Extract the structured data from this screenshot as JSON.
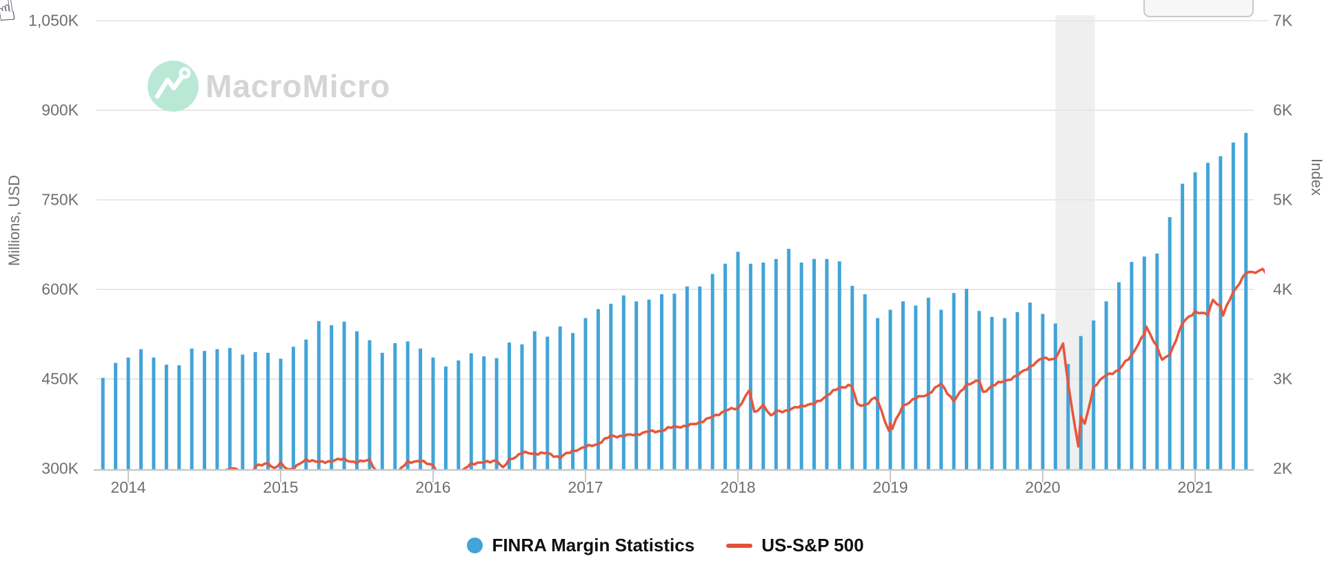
{
  "header": {
    "cursor_glyph": "☝",
    "toolbar_button_label": ""
  },
  "watermark": {
    "brand": "MacroMicro"
  },
  "left_axis": {
    "title": "Millions, USD",
    "labels": [
      "1,050K",
      "900K",
      "750K",
      "600K",
      "450K",
      "300K"
    ]
  },
  "right_axis": {
    "title": "Index",
    "labels": [
      "7K",
      "6K",
      "5K",
      "4K",
      "3K",
      "2K"
    ]
  },
  "x_axis": {
    "years": [
      "2014",
      "2015",
      "2016",
      "2017",
      "2018",
      "2019",
      "2020",
      "2021"
    ]
  },
  "legend": [
    {
      "label": "FINRA Margin Statistics",
      "marker": "circle",
      "color": "#42a4d7"
    },
    {
      "label": "US-S&P 500",
      "marker": "line",
      "color": "#e0523c"
    }
  ],
  "colors": {
    "bar": "#42a4d7",
    "line": "#e4573e",
    "grid": "#e7e7e7",
    "axis": "#c8c8c8",
    "band": "#efefef",
    "label": "#6b6f73",
    "logo_mint": "#b9e9d6"
  },
  "chart_data": {
    "type": "combo",
    "title": "",
    "left_ylim": [
      300000,
      1050000
    ],
    "right_ylim": [
      2000,
      7000
    ],
    "x_range": [
      "2013-11",
      "2021-06"
    ],
    "grid": true,
    "legend_position": "bottom",
    "recession_band": {
      "from": "2020-02",
      "to": "2020-04"
    },
    "series": [
      {
        "name": "FINRA Margin Statistics",
        "type": "bar",
        "axis": "left",
        "unit": "Millions, USD",
        "frequency": "monthly",
        "start": "2013-11",
        "values": [
          452,
          477,
          486,
          500,
          486,
          474,
          473,
          501,
          497,
          500,
          502,
          491,
          495,
          494,
          484,
          504,
          516,
          547,
          540,
          546,
          530,
          515,
          494,
          510,
          513,
          501,
          486,
          471,
          481,
          493,
          488,
          485,
          511,
          508,
          530,
          521,
          538,
          527,
          552,
          567,
          576,
          590,
          580,
          583,
          592,
          593,
          605,
          605,
          626,
          643,
          663,
          643,
          645,
          651,
          668,
          645,
          651,
          651,
          647,
          606,
          592,
          552,
          566,
          580,
          573,
          586,
          566,
          594,
          601,
          564,
          554,
          552,
          562,
          578,
          559,
          543,
          475,
          522,
          548,
          580,
          612,
          646,
          655,
          660,
          721,
          777,
          796,
          812,
          823,
          846,
          862
        ],
        "values_unit_note": "thousands of millions USD (K)"
      },
      {
        "name": "US-S&P 500",
        "type": "line",
        "axis": "right",
        "x_unit": "months_after_2014_01",
        "points": [
          [
            6,
            1960
          ],
          [
            7,
            1931
          ],
          [
            8,
            2003
          ],
          [
            9,
            1972
          ],
          [
            9.5,
            1862
          ],
          [
            10,
            2018
          ],
          [
            11,
            2068
          ],
          [
            11.5,
            1993
          ],
          [
            12,
            2059
          ],
          [
            12.6,
            1992
          ],
          [
            13,
            1995
          ],
          [
            14,
            2105
          ],
          [
            15,
            2068
          ],
          [
            16,
            2086
          ],
          [
            17,
            2107
          ],
          [
            18,
            2063
          ],
          [
            19,
            2104
          ],
          [
            19.8,
            1890
          ],
          [
            20,
            1972
          ],
          [
            20.6,
            1882
          ],
          [
            21,
            1920
          ],
          [
            22,
            2079
          ],
          [
            23,
            2080
          ],
          [
            24,
            2044
          ],
          [
            24.7,
            1880
          ],
          [
            25,
            1940
          ],
          [
            25.5,
            1829
          ],
          [
            26,
            1932
          ],
          [
            27,
            2060
          ],
          [
            28,
            2065
          ],
          [
            29,
            2097
          ],
          [
            29.5,
            2001
          ],
          [
            30,
            2099
          ],
          [
            31,
            2174
          ],
          [
            32,
            2171
          ],
          [
            33,
            2168
          ],
          [
            34,
            2126
          ],
          [
            35,
            2199
          ],
          [
            36,
            2239
          ],
          [
            37,
            2279
          ],
          [
            38,
            2364
          ],
          [
            39,
            2363
          ],
          [
            40,
            2384
          ],
          [
            41,
            2412
          ],
          [
            42,
            2423
          ],
          [
            43,
            2470
          ],
          [
            44,
            2472
          ],
          [
            45,
            2519
          ],
          [
            46,
            2575
          ],
          [
            47,
            2648
          ],
          [
            48,
            2674
          ],
          [
            48.9,
            2873
          ],
          [
            49.3,
            2620
          ],
          [
            50,
            2714
          ],
          [
            50.6,
            2581
          ],
          [
            51,
            2641
          ],
          [
            52,
            2648
          ],
          [
            53,
            2705
          ],
          [
            54,
            2718
          ],
          [
            55,
            2816
          ],
          [
            56,
            2902
          ],
          [
            56.7,
            2930
          ],
          [
            57,
            2914
          ],
          [
            57.4,
            2710
          ],
          [
            58,
            2712
          ],
          [
            58.8,
            2790
          ],
          [
            59,
            2760
          ],
          [
            59.9,
            2416
          ],
          [
            60,
            2507
          ],
          [
            60.15,
            2448
          ],
          [
            61,
            2704
          ],
          [
            62,
            2784
          ],
          [
            63,
            2834
          ],
          [
            64,
            2946
          ],
          [
            65,
            2752
          ],
          [
            66,
            2942
          ],
          [
            67,
            2980
          ],
          [
            67.3,
            2847
          ],
          [
            68,
            2926
          ],
          [
            69,
            2977
          ],
          [
            70,
            3038
          ],
          [
            71,
            3141
          ],
          [
            72,
            3231
          ],
          [
            73,
            3226
          ],
          [
            73.6,
            3386
          ],
          [
            74,
            2954
          ],
          [
            74.8,
            2237
          ],
          [
            75,
            2585
          ],
          [
            75.3,
            2488
          ],
          [
            76,
            2912
          ],
          [
            77,
            3044
          ],
          [
            78,
            3100
          ],
          [
            79,
            3271
          ],
          [
            80,
            3500
          ],
          [
            80.15,
            3580
          ],
          [
            81,
            3363
          ],
          [
            81.4,
            3209
          ],
          [
            82,
            3270
          ],
          [
            83,
            3622
          ],
          [
            84,
            3756
          ],
          [
            85,
            3714
          ],
          [
            85.4,
            3886
          ],
          [
            86,
            3811
          ],
          [
            86.2,
            3714
          ],
          [
            87,
            3973
          ],
          [
            88,
            4181
          ],
          [
            89,
            4204
          ],
          [
            89.3,
            4238
          ],
          [
            89.6,
            4166
          ]
        ]
      }
    ]
  }
}
